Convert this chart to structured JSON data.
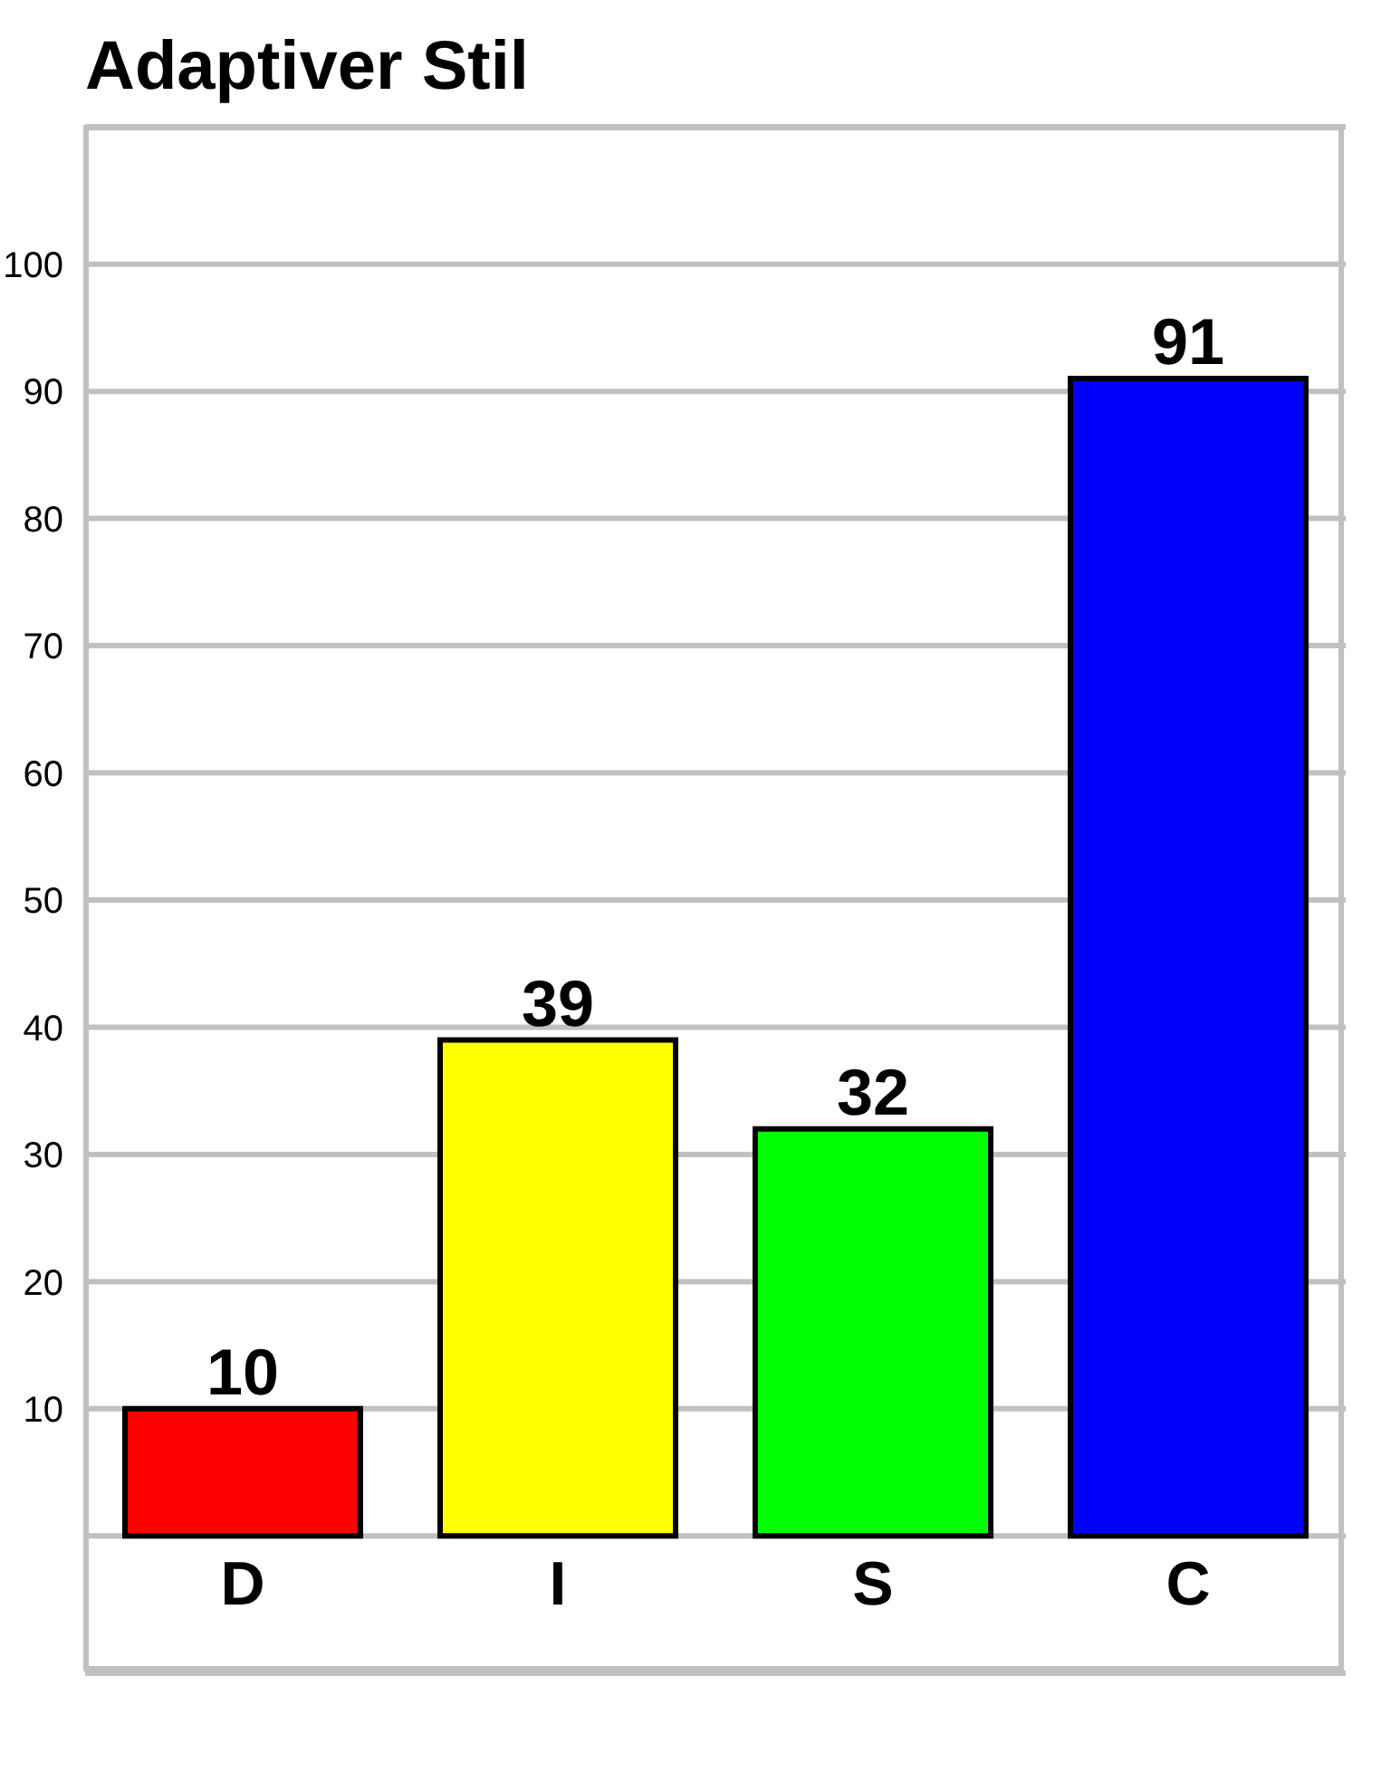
{
  "chart_data": {
    "type": "bar",
    "title": "Adaptiver Stil",
    "categories": [
      "D",
      "I",
      "S",
      "C"
    ],
    "values": [
      10,
      39,
      32,
      91
    ],
    "colors": [
      "#ff0000",
      "#ffff00",
      "#00ff00",
      "#0000ff"
    ],
    "ylim": [
      -10.8,
      110.8
    ],
    "yticks": [
      {
        "value": 0,
        "label": null
      },
      10,
      20,
      30,
      40,
      50,
      60,
      70,
      80,
      90,
      100
    ],
    "grid": "y",
    "data_labels": true
  }
}
